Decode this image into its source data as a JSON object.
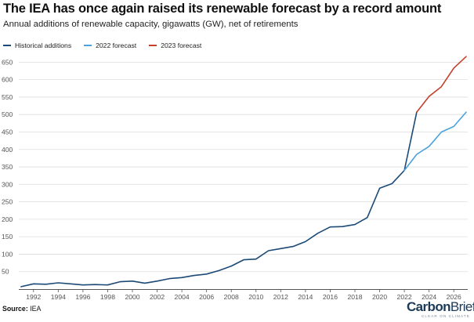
{
  "header": {
    "title": "The IEA has once again raised its renewable forecast by a record amount",
    "subtitle": "Annual additions of renewable capacity, gigawatts (GW), net of retirements"
  },
  "footer": {
    "source_label": "Source:",
    "source_value": "IEA",
    "brand_bold": "Carbon",
    "brand_light": "Brief",
    "brand_tagline": "CLEAR ON CLIMATE"
  },
  "colors": {
    "historical": "#1b4a76",
    "forecast_2022": "#4aa3de",
    "forecast_2023": "#c4402a",
    "grid": "#dddddd"
  },
  "chart_data": {
    "type": "line",
    "title": "The IEA has once again raised its renewable forecast by a record amount",
    "subtitle": "Annual additions of renewable capacity, gigawatts (GW), net of retirements",
    "xlabel": "",
    "ylabel": "",
    "xlim": [
      1991,
      2027
    ],
    "ylim": [
      0,
      680
    ],
    "x_ticks": [
      1992,
      1994,
      1996,
      1998,
      2000,
      2002,
      2004,
      2006,
      2008,
      2010,
      2012,
      2014,
      2016,
      2018,
      2020,
      2022,
      2024,
      2026
    ],
    "y_ticks": [
      50,
      100,
      150,
      200,
      250,
      300,
      350,
      400,
      450,
      500,
      550,
      600,
      650
    ],
    "grid": true,
    "legend_position": "top-left",
    "series": [
      {
        "name": "Historical additions",
        "color": "#1b4a76",
        "x": [
          1991,
          1992,
          1993,
          1994,
          1995,
          1996,
          1997,
          1998,
          1999,
          2000,
          2001,
          2002,
          2003,
          2004,
          2005,
          2006,
          2007,
          2008,
          2009,
          2010,
          2011,
          2012,
          2013,
          2014,
          2015,
          2016,
          2017,
          2018,
          2019,
          2020,
          2021,
          2022,
          2023
        ],
        "y": [
          7,
          15,
          14,
          18,
          15,
          12,
          13,
          12,
          21,
          23,
          17,
          23,
          30,
          33,
          39,
          43,
          53,
          66,
          84,
          86,
          110,
          116,
          122,
          136,
          160,
          178,
          179,
          185,
          205,
          289,
          302,
          340,
          507
        ]
      },
      {
        "name": "2022 forecast",
        "color": "#4aa3de",
        "x": [
          2022,
          2023,
          2024,
          2025,
          2026,
          2027
        ],
        "y": [
          340,
          386,
          409,
          450,
          466,
          507
        ]
      },
      {
        "name": "2023 forecast",
        "color": "#c4402a",
        "x": [
          2023,
          2024,
          2025,
          2026,
          2027
        ],
        "y": [
          507,
          552,
          580,
          633,
          666
        ]
      }
    ]
  }
}
